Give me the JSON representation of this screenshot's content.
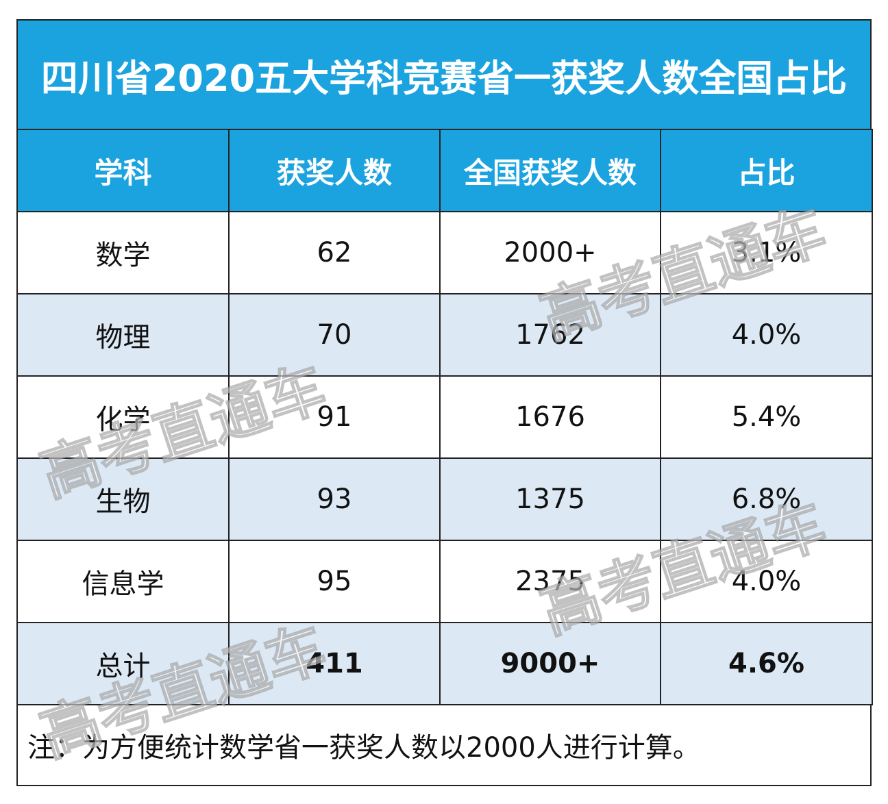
{
  "header": {
    "title": "四川省2020五大学科竞赛省一获奖人数全国占比"
  },
  "table": {
    "columns": [
      "学科",
      "获奖人数",
      "全国获奖人数",
      "占比"
    ],
    "rows": [
      [
        "数学",
        "62",
        "2000+",
        "3.1%"
      ],
      [
        "物理",
        "70",
        "1762",
        "4.0%"
      ],
      [
        "化学",
        "91",
        "1676",
        "5.4%"
      ],
      [
        "生物",
        "93",
        "1375",
        "6.8%"
      ],
      [
        "信息学",
        "95",
        "2375",
        "4.0%"
      ],
      [
        "总计",
        "411",
        "9000+",
        "4.6%"
      ]
    ]
  },
  "note": "注：为方便统计数学省一获奖人数以2000人进行计算。",
  "watermark": "高考直通车"
}
